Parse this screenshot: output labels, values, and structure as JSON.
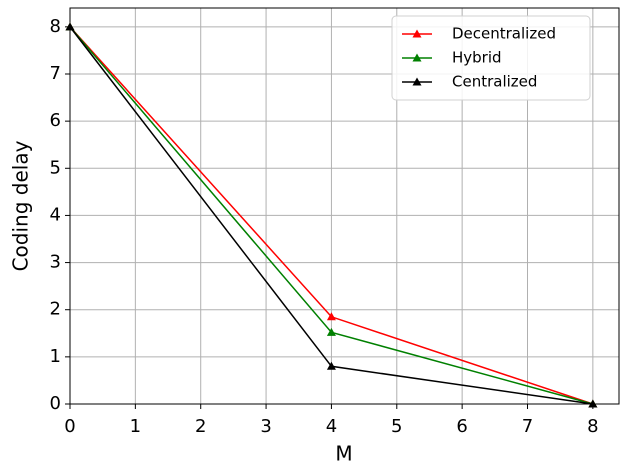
{
  "chart_data": {
    "type": "line",
    "x_label": "M",
    "y_label": "Coding delay",
    "x": [
      0,
      4,
      8
    ],
    "series": [
      {
        "name": "Decentralized",
        "color": "#ff0000",
        "values": [
          8,
          1.85,
          0
        ]
      },
      {
        "name": "Hybrid",
        "color": "#008000",
        "values": [
          8,
          1.52,
          0
        ]
      },
      {
        "name": "Centralized",
        "color": "#000000",
        "values": [
          8,
          0.8,
          0
        ]
      }
    ],
    "xlim": [
      0,
      8.4
    ],
    "ylim": [
      0,
      8.4
    ],
    "xticks": [
      0,
      1,
      2,
      3,
      4,
      5,
      6,
      7,
      8
    ],
    "yticks": [
      0,
      1,
      2,
      3,
      4,
      5,
      6,
      7,
      8
    ],
    "grid": true,
    "legend": "upper right"
  }
}
